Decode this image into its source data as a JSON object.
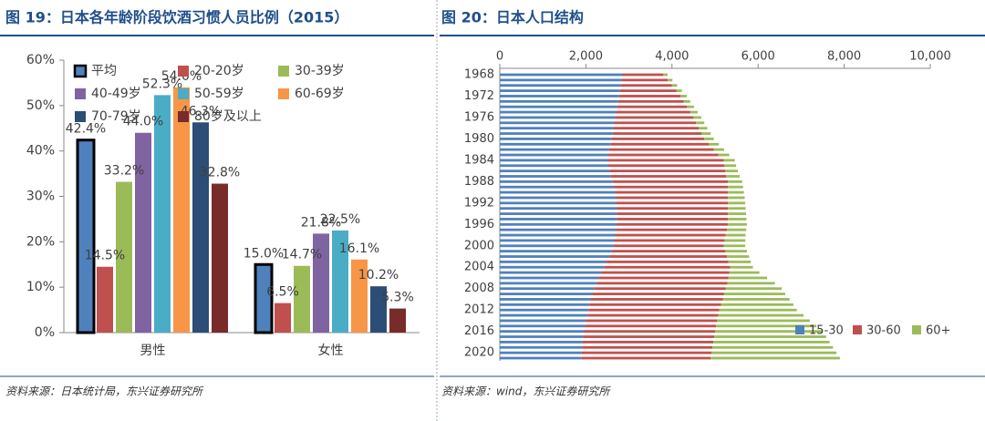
{
  "chart_data": [
    {
      "type": "grouped-bar",
      "title": "图 19：日本各年龄阶段饮酒习惯人员比例（2015）",
      "source": "资料来源：日本统计局，东兴证券研究所",
      "categories": [
        "男性",
        "女性"
      ],
      "ylim": [
        0,
        60
      ],
      "yticks": [
        {
          "value": 0,
          "label": "0%"
        },
        {
          "value": 10,
          "label": "10%"
        },
        {
          "value": 20,
          "label": "20%"
        },
        {
          "value": 30,
          "label": "30%"
        },
        {
          "value": 40,
          "label": "40%"
        },
        {
          "value": 50,
          "label": "50%"
        },
        {
          "value": 60,
          "label": "60%"
        }
      ],
      "series": [
        {
          "name": "平均",
          "color": "#4f81bd",
          "outline": "#000000",
          "values": [
            42.4,
            15.0
          ],
          "value_labels": [
            "42.4%",
            "15.0%"
          ]
        },
        {
          "name": "20-20岁",
          "color": "#c0504d",
          "values": [
            14.5,
            6.5
          ],
          "value_labels": [
            "14.5%",
            "6.5%"
          ]
        },
        {
          "name": "30-39岁",
          "color": "#9bbb59",
          "values": [
            33.2,
            14.7
          ],
          "value_labels": [
            "33.2%",
            "14.7%"
          ]
        },
        {
          "name": "40-49岁",
          "color": "#8064a2",
          "values": [
            44.0,
            21.8
          ],
          "value_labels": [
            "44.0%",
            "21.8%"
          ]
        },
        {
          "name": "50-59岁",
          "color": "#4bacc6",
          "values": [
            52.3,
            22.5
          ],
          "value_labels": [
            "52.3%",
            "22.5%"
          ]
        },
        {
          "name": "60-69岁",
          "color": "#f79646",
          "values": [
            54.0,
            16.1
          ],
          "value_labels": [
            "54.0%",
            "16.1%"
          ]
        },
        {
          "name": "70-79岁",
          "color": "#2c4d75",
          "values": [
            46.3,
            10.2
          ],
          "value_labels": [
            "46.3%",
            "10.2%"
          ]
        },
        {
          "name": "80岁及以上",
          "color": "#772c2a",
          "values": [
            32.8,
            5.3
          ],
          "value_labels": [
            "32.8%",
            "5.3%"
          ]
        }
      ]
    },
    {
      "type": "stacked-hbar",
      "title": "图 20：日本人口结构",
      "source": "资料来源：wind，东兴证券研究所",
      "categories": [
        "1968",
        null,
        null,
        null,
        "1972",
        null,
        null,
        null,
        "1976",
        null,
        null,
        null,
        "1980",
        null,
        null,
        null,
        "1984",
        null,
        null,
        null,
        "1988",
        null,
        null,
        null,
        "1992",
        null,
        null,
        null,
        "1996",
        null,
        null,
        null,
        "2000",
        null,
        null,
        null,
        "2004",
        null,
        null,
        null,
        "2008",
        null,
        null,
        null,
        "2012",
        null,
        null,
        null,
        "2016",
        null,
        null,
        null,
        "2020",
        null
      ],
      "xlim": [
        0,
        10000
      ],
      "xticks": [
        0,
        {
          "value": 2000,
          "label": "2,000"
        },
        {
          "value": 4000,
          "label": "4,000"
        },
        {
          "value": 6000,
          "label": "6,000"
        },
        {
          "value": 8000,
          "label": "8,000"
        },
        {
          "value": 10000,
          "label": "10,000"
        }
      ],
      "series": [
        {
          "name": "15-30",
          "color": "#4f81bd",
          "values": [
            2850,
            2830,
            2810,
            2790,
            2770,
            2750,
            2720,
            2700,
            2680,
            2660,
            2640,
            2620,
            2600,
            2570,
            2540,
            2520,
            2500,
            2520,
            2550,
            2580,
            2620,
            2650,
            2680,
            2700,
            2700,
            2710,
            2720,
            2720,
            2710,
            2700,
            2680,
            2660,
            2640,
            2600,
            2550,
            2480,
            2420,
            2360,
            2300,
            2250,
            2200,
            2150,
            2100,
            2080,
            2060,
            2040,
            2000,
            1980,
            1960,
            1940,
            1920,
            1910,
            1900,
            1890
          ]
        },
        {
          "name": "30-60",
          "color": "#c0504d",
          "values": [
            950,
            1070,
            1190,
            1310,
            1430,
            1525,
            1630,
            1725,
            1820,
            1900,
            1980,
            2070,
            2150,
            2290,
            2430,
            2560,
            2700,
            2700,
            2690,
            2680,
            2680,
            2650,
            2620,
            2600,
            2600,
            2590,
            2580,
            2580,
            2590,
            2575,
            2570,
            2565,
            2560,
            2640,
            2730,
            2830,
            2930,
            2970,
            3010,
            3040,
            3050,
            3060,
            3080,
            3060,
            3040,
            3035,
            3050,
            3045,
            3040,
            3040,
            3040,
            3030,
            3020,
            3010
          ]
        },
        {
          "name": "60+",
          "color": "#9bbb59",
          "values": [
            100,
            110,
            120,
            130,
            140,
            150,
            160,
            170,
            180,
            190,
            200,
            210,
            220,
            230,
            240,
            250,
            260,
            270,
            290,
            310,
            330,
            350,
            370,
            390,
            400,
            410,
            420,
            430,
            440,
            450,
            460,
            480,
            500,
            500,
            510,
            520,
            530,
            700,
            900,
            1100,
            1300,
            1420,
            1550,
            1680,
            1800,
            1980,
            2150,
            2330,
            2500,
            2600,
            2700,
            2800,
            2900,
            3000
          ]
        }
      ]
    }
  ]
}
